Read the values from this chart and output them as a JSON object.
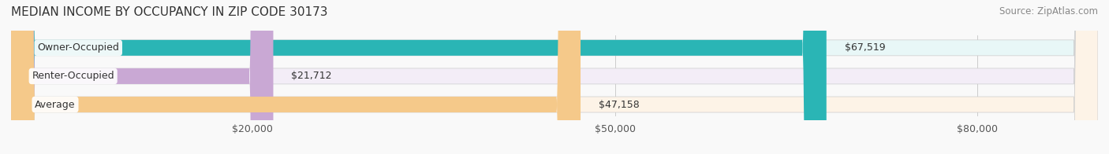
{
  "title": "MEDIAN INCOME BY OCCUPANCY IN ZIP CODE 30173",
  "source": "Source: ZipAtlas.com",
  "categories": [
    "Owner-Occupied",
    "Renter-Occupied",
    "Average"
  ],
  "values": [
    67519,
    21712,
    47158
  ],
  "labels": [
    "$67,519",
    "$21,712",
    "$47,158"
  ],
  "bar_colors": [
    "#2ab5b5",
    "#c9a8d4",
    "#f5c98a"
  ],
  "bar_bg_colors": [
    "#e8f7f7",
    "#f3edf7",
    "#fdf3e7"
  ],
  "xmax": 90000,
  "xticks": [
    0,
    20000,
    50000,
    80000
  ],
  "xtick_labels": [
    "$20,000",
    "$50,000",
    "$80,000"
  ],
  "title_fontsize": 11,
  "source_fontsize": 8.5,
  "label_fontsize": 9,
  "bar_height": 0.55,
  "figsize": [
    14.06,
    1.96
  ],
  "dpi": 100
}
